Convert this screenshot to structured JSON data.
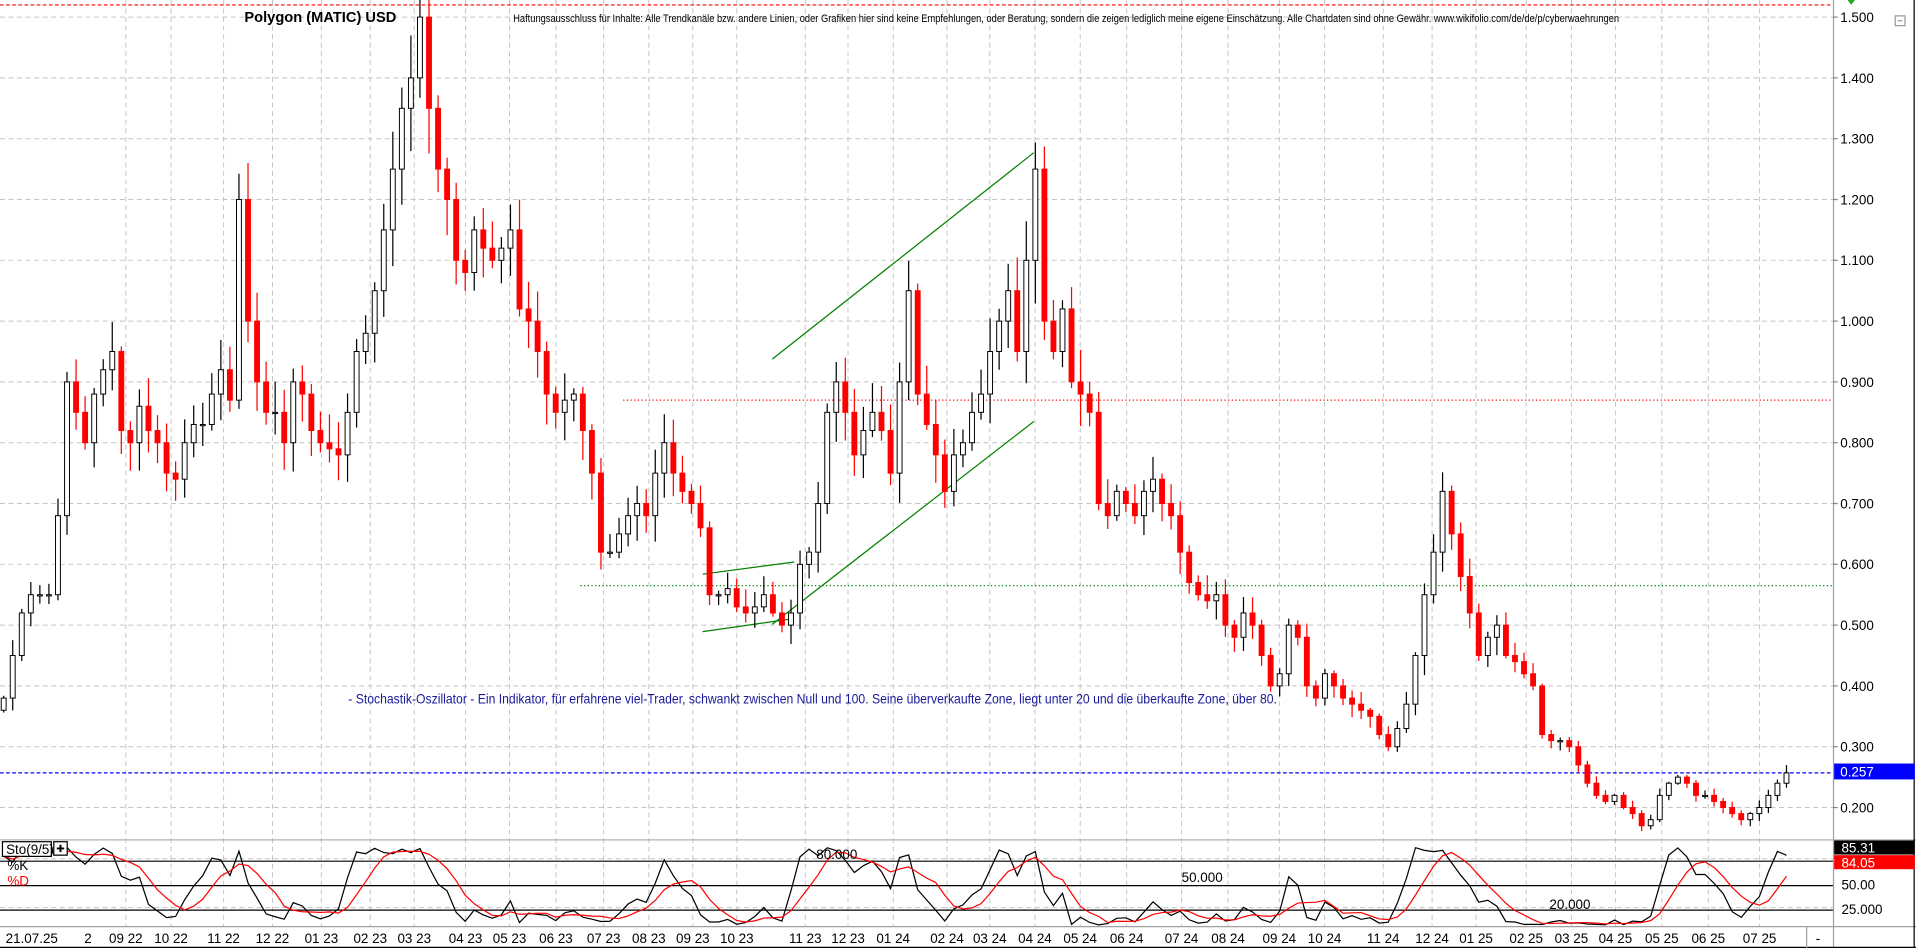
{
  "title": "Polygon (MATIC) USD",
  "disclaimer": "Haftungsausschluss für Inhalte: Alle Trendkanäle bzw. andere Linien, oder Grafiken hier sind keine Empfehlungen, oder Beratung, sondern die zeigen lediglich meine eigene Einschätzung. Alle Chartdaten sind ohne Gewähr.  www.wikifolio.com/de/de/p/cyberwaehrungen",
  "indicator_note": "- Stochastik-Oszillator - Ein Indikator, für erfahrene viel-Trader, schwankt zwischen Null und 100. Seine überverkaufte Zone, liegt unter 20 und die überkaufte Zone, über 80.",
  "colors": {
    "up": "#000000",
    "down": "#ff0000",
    "trendline": "#008000",
    "current_price": "#0000ff",
    "resistance": "#ff0000",
    "support": "#008000"
  },
  "chart_data": [
    {
      "type": "candlestick",
      "title": "Polygon (MATIC) USD",
      "ylim": [
        0.16,
        1.52
      ],
      "grid": true,
      "y_tick_labels": [
        "1.500",
        "1.400",
        "1.300",
        "1.200",
        "1.100",
        "1.000",
        "0.900",
        "0.800",
        "0.700",
        "0.600",
        "0.500",
        "0.400",
        "0.300",
        "0.200"
      ],
      "x_tick_labels": [
        "21.07.25",
        "2",
        "09 22",
        "10 22",
        "11 22",
        "12 22",
        "01 23",
        "02 23",
        "03 23",
        "04 23",
        "05 23",
        "06 23",
        "07 23",
        "08 23",
        "09 23",
        "10 23",
        "11 23",
        "12 23",
        "01 24",
        "02 24",
        "03 24",
        "04 24",
        "05 24",
        "06 24",
        "07 24",
        "08 24",
        "09 24",
        "10 24",
        "11 24",
        "12 24",
        "01 25",
        "02 25",
        "03 25",
        "04 25",
        "05 25",
        "06 25",
        "07 25"
      ],
      "x_axis_end_label": "-",
      "current_price": "0.257",
      "levels": [
        {
          "price": 1.52,
          "color": "#ff0000",
          "style": "dashed"
        },
        {
          "price": 0.87,
          "color": "#ff0000",
          "style": "dotted"
        },
        {
          "price": 0.565,
          "color": "#008000",
          "style": "dotted"
        },
        {
          "price": 0.257,
          "color": "#0000ff",
          "style": "dashed"
        }
      ],
      "closes": [
        0.38,
        0.45,
        0.52,
        0.55,
        0.55,
        0.55,
        0.68,
        0.9,
        0.85,
        0.8,
        0.88,
        0.92,
        0.95,
        0.82,
        0.8,
        0.86,
        0.82,
        0.8,
        0.75,
        0.74,
        0.8,
        0.83,
        0.83,
        0.88,
        0.92,
        0.87,
        1.2,
        1.0,
        0.9,
        0.85,
        0.85,
        0.8,
        0.9,
        0.88,
        0.82,
        0.8,
        0.79,
        0.78,
        0.85,
        0.95,
        0.98,
        1.05,
        1.15,
        1.25,
        1.35,
        1.4,
        1.5,
        1.35,
        1.25,
        1.2,
        1.1,
        1.08,
        1.15,
        1.12,
        1.1,
        1.12,
        1.15,
        1.02,
        1.0,
        0.95,
        0.88,
        0.85,
        0.87,
        0.88,
        0.82,
        0.75,
        0.62,
        0.62,
        0.65,
        0.68,
        0.7,
        0.68,
        0.75,
        0.8,
        0.75,
        0.72,
        0.7,
        0.66,
        0.55,
        0.55,
        0.56,
        0.53,
        0.52,
        0.53,
        0.55,
        0.52,
        0.5,
        0.52,
        0.6,
        0.62,
        0.7,
        0.85,
        0.9,
        0.85,
        0.78,
        0.82,
        0.85,
        0.82,
        0.75,
        0.9,
        1.05,
        0.88,
        0.83,
        0.78,
        0.72,
        0.78,
        0.8,
        0.85,
        0.88,
        0.95,
        1.0,
        1.05,
        0.95,
        1.1,
        1.25,
        1.0,
        0.95,
        1.02,
        0.9,
        0.88,
        0.85,
        0.7,
        0.68,
        0.72,
        0.7,
        0.68,
        0.72,
        0.74,
        0.7,
        0.68,
        0.62,
        0.57,
        0.55,
        0.54,
        0.55,
        0.5,
        0.48,
        0.52,
        0.5,
        0.45,
        0.4,
        0.42,
        0.5,
        0.48,
        0.4,
        0.38,
        0.42,
        0.4,
        0.38,
        0.37,
        0.36,
        0.35,
        0.32,
        0.3,
        0.33,
        0.37,
        0.45,
        0.55,
        0.62,
        0.72,
        0.65,
        0.58,
        0.52,
        0.45,
        0.48,
        0.5,
        0.45,
        0.44,
        0.42,
        0.4,
        0.32,
        0.31,
        0.31,
        0.3,
        0.27,
        0.24,
        0.22,
        0.21,
        0.22,
        0.2,
        0.19,
        0.17,
        0.18,
        0.22,
        0.24,
        0.25,
        0.24,
        0.22,
        0.22,
        0.21,
        0.2,
        0.19,
        0.18,
        0.19,
        0.2,
        0.22,
        0.24,
        0.257
      ]
    },
    {
      "type": "line",
      "title": "Sto(9/5)",
      "ylim": [
        0,
        100
      ],
      "series": [
        {
          "name": "%K",
          "color": "#000000",
          "last": "85.31"
        },
        {
          "name": "%D",
          "color": "#ff0000",
          "last": "84.05"
        }
      ],
      "y_tick_labels": [
        "50.00",
        "25.000"
      ],
      "level_labels": [
        "80.000",
        "50.000",
        "20.000"
      ],
      "levels": [
        80,
        50,
        20
      ]
    }
  ]
}
